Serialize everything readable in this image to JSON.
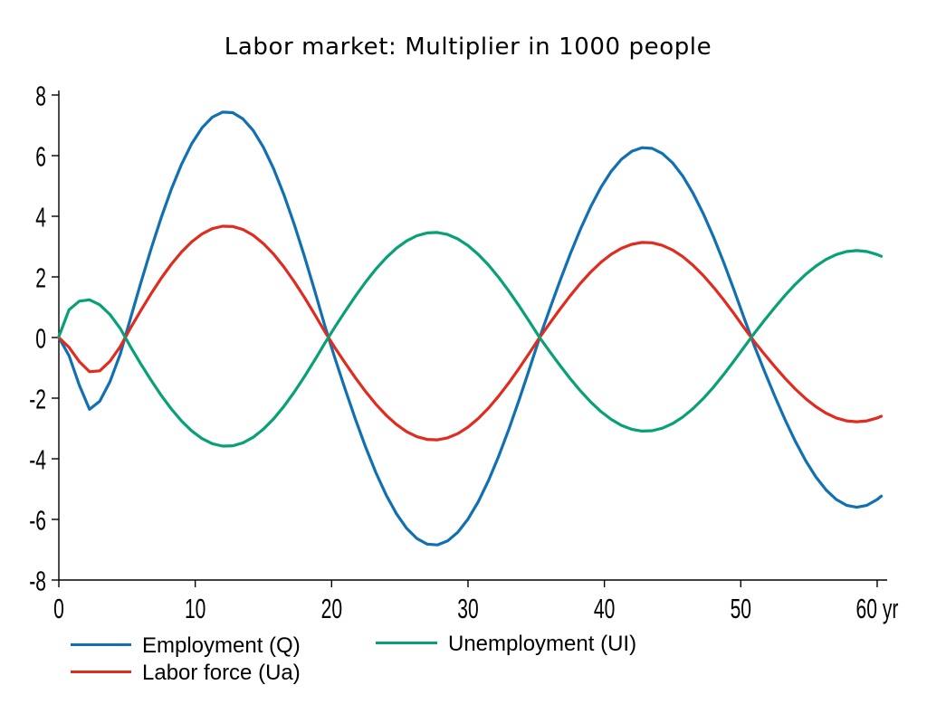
{
  "title": "Labor market: Multiplier in 1000 people",
  "axes": {
    "x_ticks": [
      0,
      10,
      20,
      30,
      40,
      50,
      60
    ],
    "x_unit": "yr",
    "y_ticks": [
      8,
      6,
      4,
      2,
      0,
      -2,
      -4,
      -6,
      -8
    ]
  },
  "colors": {
    "employment": "#1170b2",
    "labor_force": "#e02b1f",
    "unemployment": "#07a077",
    "text": "#000000",
    "axis": "#000000",
    "background": "#ffffff"
  },
  "chart_data": {
    "type": "line",
    "title": "Labor market: Multiplier in 1000 people",
    "xlabel": "yr",
    "ylabel": "",
    "xlim": [
      0,
      60.3
    ],
    "ylim": [
      -8,
      8
    ],
    "x_ticks": [
      0,
      10,
      20,
      30,
      40,
      50,
      60
    ],
    "y_ticks": [
      8,
      6,
      4,
      2,
      0,
      -2,
      -4,
      -6,
      -8
    ],
    "legend_position": "bottom",
    "grid": false,
    "zero_crossings": [
      4.85,
      19.75,
      35.25,
      50.75
    ],
    "phase_end": 66.25,
    "t_end": 60.3,
    "series": [
      {
        "name": "Employment (Q)",
        "color": "#1170b2",
        "early_points": [
          [
            0,
            0
          ],
          [
            0.9,
            -0.75
          ],
          [
            1.6,
            -1.7
          ],
          [
            2.2,
            -2.36
          ],
          [
            3,
            -2.1
          ],
          [
            3.9,
            -1.3
          ],
          [
            4.5,
            -0.55
          ],
          [
            4.85,
            0
          ]
        ],
        "extrema": [
          7.45,
          -6.85,
          6.27,
          -5.6
        ],
        "extrema_t": [
          12.3,
          27.5,
          43.0,
          58.5
        ]
      },
      {
        "name": "Labor force (Ua)",
        "color": "#e02b1f",
        "early_points": [
          [
            0,
            0
          ],
          [
            0.9,
            -0.4
          ],
          [
            1.6,
            -0.85
          ],
          [
            2.4,
            -1.16
          ],
          [
            3.1,
            -1.07
          ],
          [
            3.9,
            -0.7
          ],
          [
            4.5,
            -0.3
          ],
          [
            4.85,
            0
          ]
        ],
        "extrema": [
          3.68,
          -3.38,
          3.14,
          -2.78
        ],
        "extrema_t": [
          12.3,
          27.5,
          43.0,
          58.5
        ]
      },
      {
        "name": "Unemployment (UI)",
        "color": "#07a077",
        "early_points": [
          [
            0,
            0.03
          ],
          [
            0.3,
            0.55
          ],
          [
            0.9,
            1.0
          ],
          [
            1.6,
            1.22
          ],
          [
            2.2,
            1.25
          ],
          [
            3,
            1.08
          ],
          [
            3.9,
            0.68
          ],
          [
            4.5,
            0.3
          ],
          [
            4.85,
            0
          ]
        ],
        "extrema": [
          -3.59,
          3.47,
          -3.09,
          2.87
        ],
        "extrema_t": [
          12.3,
          27.5,
          43.0,
          58.5
        ]
      }
    ]
  },
  "legend": {
    "entries": [
      {
        "label": "Employment (Q)",
        "color": "#1170b2"
      },
      {
        "label": "Labor force (Ua)",
        "color": "#e02b1f"
      },
      {
        "label": "Unemployment (UI)",
        "color": "#07a077"
      }
    ]
  }
}
